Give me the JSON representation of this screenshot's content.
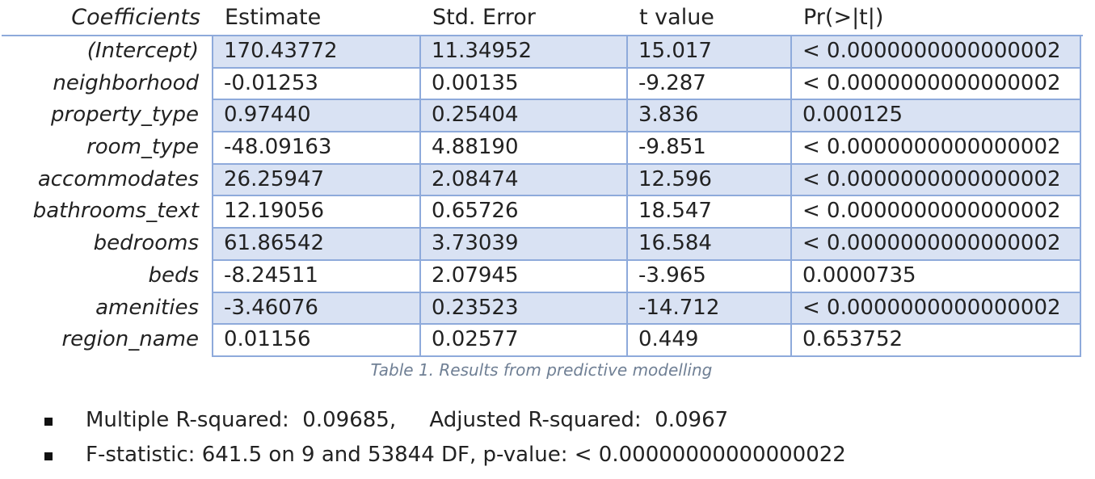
{
  "table": {
    "headers": {
      "coefficients": "Coefficients",
      "estimate": "Estimate",
      "std_error": "Std. Error",
      "t_value": "t value",
      "p_value": "Pr(>|t|)"
    },
    "rows": [
      {
        "name": "(Intercept)",
        "estimate": "170.43772",
        "std_error": "11.34952",
        "t_value": "15.017",
        "p_value": "< 0.0000000000000002"
      },
      {
        "name": "neighborhood",
        "estimate": "-0.01253",
        "std_error": "0.00135",
        "t_value": "-9.287",
        "p_value": "< 0.0000000000000002"
      },
      {
        "name": "property_type",
        "estimate": "0.97440",
        "std_error": "0.25404",
        "t_value": "3.836",
        "p_value": "0.000125"
      },
      {
        "name": "room_type",
        "estimate": "-48.09163",
        "std_error": "4.88190",
        "t_value": "-9.851",
        "p_value": "< 0.0000000000000002"
      },
      {
        "name": "accommodates",
        "estimate": "26.25947",
        "std_error": "2.08474",
        "t_value": "12.596",
        "p_value": "< 0.0000000000000002"
      },
      {
        "name": "bathrooms_text",
        "estimate": "12.19056",
        "std_error": "0.65726",
        "t_value": "18.547",
        "p_value": "< 0.0000000000000002"
      },
      {
        "name": "bedrooms",
        "estimate": "61.86542",
        "std_error": "3.73039",
        "t_value": "16.584",
        "p_value": "< 0.0000000000000002"
      },
      {
        "name": "beds",
        "estimate": "-8.24511",
        "std_error": "2.07945",
        "t_value": "-3.965",
        "p_value": "0.0000735"
      },
      {
        "name": "amenities",
        "estimate": "-3.46076",
        "std_error": "0.23523",
        "t_value": "-14.712",
        "p_value": "< 0.0000000000000002"
      },
      {
        "name": "region_name",
        "estimate": "0.01156",
        "std_error": "0.02577",
        "t_value": "0.449",
        "p_value": "0.653752"
      }
    ],
    "caption": "Table 1. Results from predictive modelling"
  },
  "stats": {
    "line1": "Multiple R-squared:  0.09685,     Adjusted R-squared:  0.0967",
    "line2": "F-statistic: 641.5 on 9 and 53844 DF, p-value: < 0.00000000000000022"
  },
  "colors": {
    "border": "#8eaadb",
    "shaded_row": "#d9e2f3",
    "caption": "#6f7f94"
  }
}
